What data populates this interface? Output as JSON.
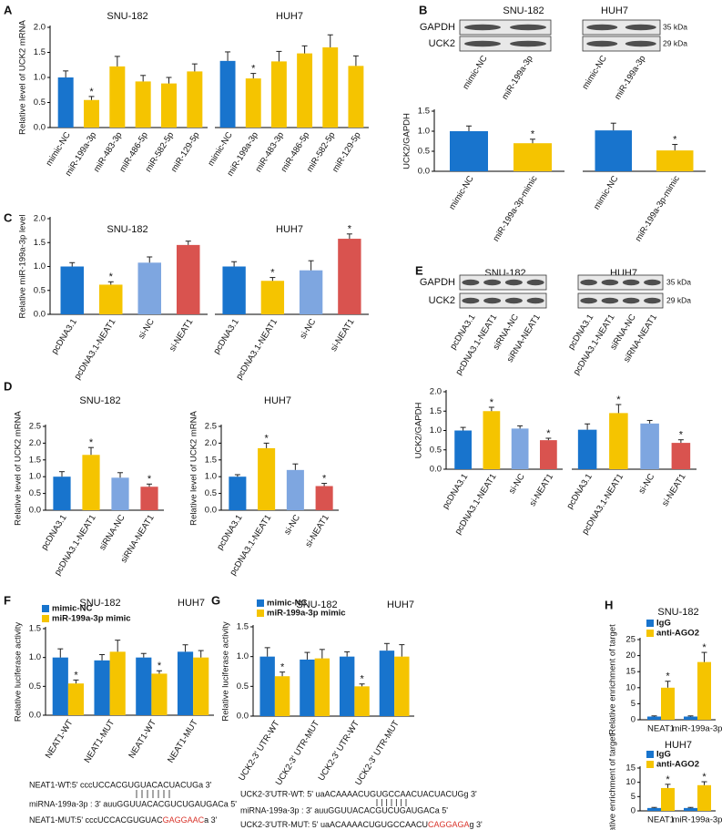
{
  "panel_labels": [
    "A",
    "B",
    "C",
    "D",
    "E",
    "F",
    "G",
    "H"
  ],
  "chart_data": [
    {
      "type": "bar",
      "title": "SNU-182",
      "ylabel": "Relative level of UCK2 mRNA",
      "categories": [
        "mimic-NC",
        "miR-199a-3p",
        "miR-483-3p",
        "miR-486-5p",
        "miR-582-5p",
        "miR-129-5p"
      ],
      "values": [
        1.0,
        0.55,
        1.22,
        0.92,
        0.88,
        1.12
      ],
      "errors": [
        0.13,
        0.07,
        0.2,
        0.12,
        0.12,
        0.15
      ],
      "colors": [
        "#1874cd",
        "#f5c400",
        "#f5c400",
        "#f5c400",
        "#f5c400",
        "#f5c400"
      ],
      "annotations": [
        {
          "index": 1,
          "text": "*"
        }
      ],
      "ylim": [
        0,
        2
      ],
      "yticks": [
        {
          "value": 0,
          "label": "0.0"
        },
        0.5,
        {
          "value": 1,
          "label": "1.0"
        },
        1.5,
        {
          "value": 2,
          "label": "2.0"
        }
      ]
    },
    {
      "type": "bar",
      "title": "HUH7",
      "categories": [
        "mimic-NC",
        "miR-199a-3p",
        "miR-483-3p",
        "miR-486-5p",
        "miR-582-5p",
        "miR-129-5p"
      ],
      "values": [
        1.33,
        0.98,
        1.32,
        1.48,
        1.6,
        1.23
      ],
      "errors": [
        0.18,
        0.1,
        0.2,
        0.15,
        0.25,
        0.2
      ],
      "colors": [
        "#1874cd",
        "#f5c400",
        "#f5c400",
        "#f5c400",
        "#f5c400",
        "#f5c400"
      ],
      "annotations": [
        {
          "index": 1,
          "text": "*"
        }
      ],
      "ylim": [
        0,
        2
      ]
    },
    {
      "type": "bar",
      "ylabel": "UCK2/GAPDH",
      "categories": [
        "mimic-NC",
        "miR-199a-3p-mimic"
      ],
      "values": [
        1.0,
        0.7
      ],
      "errors": [
        0.13,
        0.1
      ],
      "colors": [
        "#1874cd",
        "#f5c400"
      ],
      "annotations": [
        {
          "index": 1,
          "text": "*"
        }
      ],
      "ylim": [
        0,
        1.5
      ],
      "yticks": [
        {
          "value": 0,
          "label": "0.0"
        },
        0.5,
        {
          "value": 1,
          "label": "1.0"
        },
        1.5
      ]
    },
    {
      "type": "bar",
      "categories": [
        "mimic-NC",
        "miR-199a-3p-mimic"
      ],
      "values": [
        1.02,
        0.52
      ],
      "errors": [
        0.18,
        0.15
      ],
      "colors": [
        "#1874cd",
        "#f5c400"
      ],
      "annotations": [
        {
          "index": 1,
          "text": "*"
        }
      ],
      "ylim": [
        0,
        1.5
      ]
    },
    {
      "type": "bar",
      "title": "SNU-182",
      "ylabel": "Relative miR-199a-3p level",
      "categories": [
        "pcDNA3.1",
        "pcDNA3.1-NEAT1",
        "si-NC",
        "si-NEAT1"
      ],
      "values": [
        1.0,
        0.62,
        1.08,
        1.45
      ],
      "errors": [
        0.08,
        0.06,
        0.12,
        0.08
      ],
      "colors": [
        "#1874cd",
        "#f5c400",
        "#7ea6e0",
        "#d9534f"
      ],
      "annotations": [
        {
          "index": 1,
          "text": "*"
        }
      ],
      "ylim": [
        0,
        2
      ],
      "yticks": [
        {
          "value": 0,
          "label": "0.0"
        },
        0.5,
        {
          "value": 1,
          "label": "1.0"
        },
        1.5,
        {
          "value": 2,
          "label": "2.0"
        }
      ]
    },
    {
      "type": "bar",
      "title": "HUH7",
      "categories": [
        "pcDNA3.1",
        "pcDNA3.1-NEAT1",
        "si-NC",
        "si-NEAT1"
      ],
      "values": [
        1.0,
        0.7,
        0.92,
        1.58
      ],
      "errors": [
        0.1,
        0.07,
        0.2,
        0.1
      ],
      "colors": [
        "#1874cd",
        "#f5c400",
        "#7ea6e0",
        "#d9534f"
      ],
      "annotations": [
        {
          "index": 1,
          "text": "*"
        },
        {
          "index": 3,
          "text": "*"
        }
      ],
      "ylim": [
        0,
        2
      ]
    },
    {
      "type": "bar",
      "title": "SNU-182",
      "ylabel": "Relative level of UCK2 mRNA",
      "categories": [
        "pcDNA3.1",
        "pcDNA3.1-NEAT1",
        "siRNA-NC",
        "siRNA-NEAT1"
      ],
      "values": [
        1.0,
        1.65,
        0.97,
        0.7
      ],
      "errors": [
        0.15,
        0.22,
        0.15,
        0.08
      ],
      "colors": [
        "#1874cd",
        "#f5c400",
        "#7ea6e0",
        "#d9534f"
      ],
      "annotations": [
        {
          "index": 1,
          "text": "*"
        },
        {
          "index": 3,
          "text": "*"
        }
      ],
      "ylim": [
        0,
        2.5
      ],
      "yticks": [
        {
          "value": 0,
          "label": "0.0"
        },
        0.5,
        {
          "value": 1,
          "label": "1.0"
        },
        1.5,
        {
          "value": 2,
          "label": "2.0"
        },
        2.5
      ]
    },
    {
      "type": "bar",
      "title": "HUH7",
      "ylabel": "Relative level of UCK2 mRNA",
      "categories": [
        "pcDNA3.1",
        "pcDNA3.1-NEAT1",
        "si-NC",
        "si-NEAT1"
      ],
      "values": [
        1.0,
        1.85,
        1.2,
        0.72
      ],
      "errors": [
        0.06,
        0.15,
        0.18,
        0.08
      ],
      "colors": [
        "#1874cd",
        "#f5c400",
        "#7ea6e0",
        "#d9534f"
      ],
      "annotations": [
        {
          "index": 1,
          "text": "*"
        },
        {
          "index": 3,
          "text": "*"
        }
      ],
      "ylim": [
        0,
        2.5
      ],
      "yticks": [
        {
          "value": 0,
          "label": "0.0"
        },
        0.5,
        {
          "value": 1,
          "label": "1.0"
        },
        1.5,
        {
          "value": 2,
          "label": "2.0"
        },
        2.5
      ]
    },
    {
      "type": "bar",
      "ylabel": "UCK2/GAPDH",
      "categories": [
        "pcDNA3.1",
        "pcDNA3.1-NEAT1",
        "si-NC",
        "si-NEAT1"
      ],
      "values": [
        1.0,
        1.5,
        1.05,
        0.75
      ],
      "errors": [
        0.08,
        0.1,
        0.07,
        0.05
      ],
      "colors": [
        "#1874cd",
        "#f5c400",
        "#7ea6e0",
        "#d9534f"
      ],
      "annotations": [
        {
          "index": 1,
          "text": "*"
        },
        {
          "index": 3,
          "text": "*"
        }
      ],
      "ylim": [
        0,
        2
      ],
      "yticks": [
        {
          "value": 0,
          "label": "0.0"
        },
        0.5,
        {
          "value": 1,
          "label": "1.0"
        },
        1.5,
        {
          "value": 2,
          "label": "2.0"
        }
      ]
    },
    {
      "type": "bar",
      "categories": [
        "pcDNA3.1",
        "pcDNA3.1-NEAT1",
        "si-NC",
        "si-NEAT1"
      ],
      "values": [
        1.02,
        1.45,
        1.18,
        0.68
      ],
      "errors": [
        0.15,
        0.22,
        0.08,
        0.08
      ],
      "colors": [
        "#1874cd",
        "#f5c400",
        "#7ea6e0",
        "#d9534f"
      ],
      "annotations": [
        {
          "index": 1,
          "text": "*"
        },
        {
          "index": 3,
          "text": "*"
        }
      ],
      "ylim": [
        0,
        2
      ]
    },
    {
      "type": "grouped_bar",
      "group_titles": [
        "SNU-182",
        "HUH7"
      ],
      "ylabel": "Relative luciferase activity",
      "categories": [
        "NEAT1-WT",
        "NEAT1-MUT",
        "NEAT1-WT",
        "NEAT1-MUT"
      ],
      "series": [
        {
          "name": "mimic-NC",
          "color": "#1874cd",
          "values": [
            1.0,
            0.95,
            1.0,
            1.1
          ],
          "errors": [
            0.15,
            0.1,
            0.07,
            0.12
          ]
        },
        {
          "name": "miR-199a-3p mimic",
          "color": "#f5c400",
          "values": [
            0.55,
            1.1,
            0.72,
            1.0
          ],
          "errors": [
            0.06,
            0.2,
            0.05,
            0.12
          ]
        }
      ],
      "annotations": [
        {
          "series": 1,
          "index": 0,
          "text": "*"
        },
        {
          "series": 1,
          "index": 2,
          "text": "*"
        }
      ],
      "ylim": [
        0,
        1.5
      ],
      "yticks": [
        {
          "value": 0,
          "label": "0.0"
        },
        0.5,
        {
          "value": 1,
          "label": "1.0"
        },
        1.5
      ],
      "legend": "upper left"
    },
    {
      "type": "grouped_bar",
      "group_titles": [
        "SNU-182",
        "HUH7"
      ],
      "ylabel": "Relative luciferase activity",
      "categories": [
        "UCK2-3' UTR-WT",
        "UCK2-3' UTR-MUT",
        "UCK2-3' UTR-WT",
        "UCK2-3' UTR-MUT"
      ],
      "series": [
        {
          "name": "mimic-NC",
          "color": "#1874cd",
          "values": [
            1.0,
            0.95,
            1.0,
            1.1
          ],
          "errors": [
            0.15,
            0.12,
            0.08,
            0.12
          ]
        },
        {
          "name": "miR-199a-3p mimic",
          "color": "#f5c400",
          "values": [
            0.67,
            0.97,
            0.5,
            1.0
          ],
          "errors": [
            0.07,
            0.15,
            0.04,
            0.2
          ]
        }
      ],
      "annotations": [
        {
          "series": 1,
          "index": 0,
          "text": "*"
        },
        {
          "series": 1,
          "index": 2,
          "text": "*"
        }
      ],
      "ylim": [
        0,
        1.5
      ],
      "yticks": [
        {
          "value": 0,
          "label": "0.0"
        },
        0.5,
        {
          "value": 1,
          "label": "1.0"
        },
        1.5
      ],
      "legend": "upper left"
    },
    {
      "type": "grouped_bar",
      "title": "SNU-182",
      "ylabel": "Relative enrichment of target",
      "categories": [
        "NEAT1",
        "miR-199a-3p"
      ],
      "series": [
        {
          "name": "IgG",
          "color": "#1874cd",
          "values": [
            1,
            1
          ],
          "errors": [
            0.2,
            0.2
          ]
        },
        {
          "name": "anti-AGO2",
          "color": "#f5c400",
          "values": [
            10,
            18
          ],
          "errors": [
            2,
            3
          ]
        }
      ],
      "annotations": [
        {
          "series": 1,
          "index": 0,
          "text": "*"
        },
        {
          "series": 1,
          "index": 1,
          "text": "*"
        }
      ],
      "ylim": [
        0,
        25
      ],
      "yticks": [
        0,
        5,
        10,
        15,
        20,
        25
      ],
      "legend": "upper left"
    },
    {
      "type": "grouped_bar",
      "title": "HUH7",
      "ylabel": "Relative enrichment of target",
      "categories": [
        "NEAT1",
        "miR-199a-3p"
      ],
      "series": [
        {
          "name": "IgG",
          "color": "#1874cd",
          "values": [
            1,
            1
          ],
          "errors": [
            0.2,
            0.2
          ]
        },
        {
          "name": "anti-AGO2",
          "color": "#f5c400",
          "values": [
            8,
            9
          ],
          "errors": [
            1.3,
            1.2
          ]
        }
      ],
      "annotations": [
        {
          "series": 1,
          "index": 0,
          "text": "*"
        },
        {
          "series": 1,
          "index": 1,
          "text": "*"
        }
      ],
      "ylim": [
        0,
        15
      ],
      "yticks": [
        0,
        5,
        10,
        15
      ],
      "legend": "upper left"
    }
  ],
  "blots": [
    {
      "title": "SNU-182",
      "rows": [
        "GAPDH",
        "UCK2"
      ],
      "lanes": [
        "mimic-NC",
        "miR-199a-3p"
      ]
    },
    {
      "title": "HUH7",
      "kda": [
        "35 kDa",
        "29 kDa"
      ],
      "lanes": [
        "mimic-NC",
        "miR-199a-3p"
      ]
    },
    {
      "title": "SNU-182",
      "rows": [
        "GAPDH",
        "UCK2"
      ],
      "lanes": [
        "pcDNA3.1",
        "pcDNA3.1-NEAT1",
        "siRNA-NC",
        "siRNA-NEAT1"
      ]
    },
    {
      "title": "HUH7",
      "kda": [
        "35 kDa",
        "29 kDa"
      ],
      "lanes": [
        "pcDNA3.1",
        "pcDNA3.1-NEAT1",
        "siRNA-NC",
        "siRNA-NEAT1"
      ]
    }
  ],
  "sequences": [
    {
      "wt": "NEAT1-WT:5' cccUCCACGUGUACACUACUGa 3'",
      "mirna": "miRNA-199a-3p : 3' auuGGUUACACGUCUGAUGACa 5'",
      "mut": {
        "prefix": "NEAT1-MUT:5' cccUCCACGUGUAC",
        "mutation": "GAGGAAC",
        "suffix": "a 3'"
      },
      "mutation_color": "#d9342b"
    },
    {
      "wt": "UCK2-3'UTR-WT: 5' uaACAAAACUGUGCCAACUACUACUGg 3'",
      "mirna": "miRNA-199a-3p : 3' auuGGUUACACGUCUGAUGACa 5'",
      "mut": {
        "prefix": "UCK2-3'UTR-MUT: 5' uaACAAAACUGUGCCAACU",
        "mutation": "CAGGAGA",
        "suffix": "g 3'"
      },
      "mutation_color": "#d9342b"
    }
  ]
}
